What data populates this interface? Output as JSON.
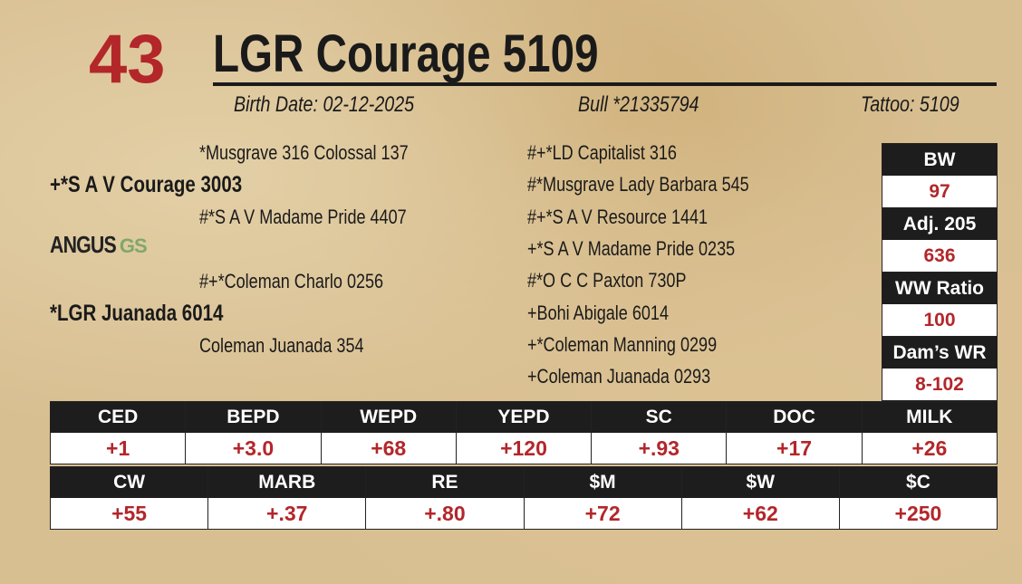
{
  "header": {
    "lot": "43",
    "name": "LGR Courage 5109",
    "birth_date": "Birth Date: 02-12-2025",
    "registration": "Bull *21335794",
    "tattoo": "Tattoo: 5109"
  },
  "pedigree": {
    "sire": "+*S A V Courage 3003",
    "sire_sire": "*Musgrave 316 Colossal 137",
    "sire_dam": "#*S A V Madame Pride 4407",
    "dam": "*LGR Juanada 6014",
    "dam_sire": "#+*Coleman Charlo 0256",
    "dam_dam": "Coleman Juanada 354",
    "great_grandparents": [
      "#+*LD Capitalist 316",
      "#*Musgrave Lady Barbara 545",
      "#+*S A V Resource 1441",
      "+*S A V Madame Pride 0235",
      "#*O C C Paxton 730P",
      "+Bohi Abigale 6014",
      "+*Coleman Manning 0299",
      "+Coleman Juanada 0293"
    ]
  },
  "logo": {
    "text": "ANGUS",
    "suffix": "GS"
  },
  "performance": [
    {
      "label": "BW",
      "value": "97"
    },
    {
      "label": "Adj. 205",
      "value": "636"
    },
    {
      "label": "WW Ratio",
      "value": "100"
    },
    {
      "label": "Dam’s WR",
      "value": "8-102"
    }
  ],
  "epd_tables": [
    {
      "columns": [
        {
          "label": "CED",
          "value": "+1"
        },
        {
          "label": "BEPD",
          "value": "+3.0"
        },
        {
          "label": "WEPD",
          "value": "+68"
        },
        {
          "label": "YEPD",
          "value": "+120"
        },
        {
          "label": "SC",
          "value": "+.93"
        },
        {
          "label": "DOC",
          "value": "+17"
        },
        {
          "label": "MILK",
          "value": "+26"
        }
      ]
    },
    {
      "columns": [
        {
          "label": "CW",
          "value": "+55"
        },
        {
          "label": "MARB",
          "value": "+.37"
        },
        {
          "label": "RE",
          "value": "+.80"
        },
        {
          "label": "$M",
          "value": "+72"
        },
        {
          "label": "$W",
          "value": "+62"
        },
        {
          "label": "$C",
          "value": "+250"
        }
      ]
    }
  ]
}
